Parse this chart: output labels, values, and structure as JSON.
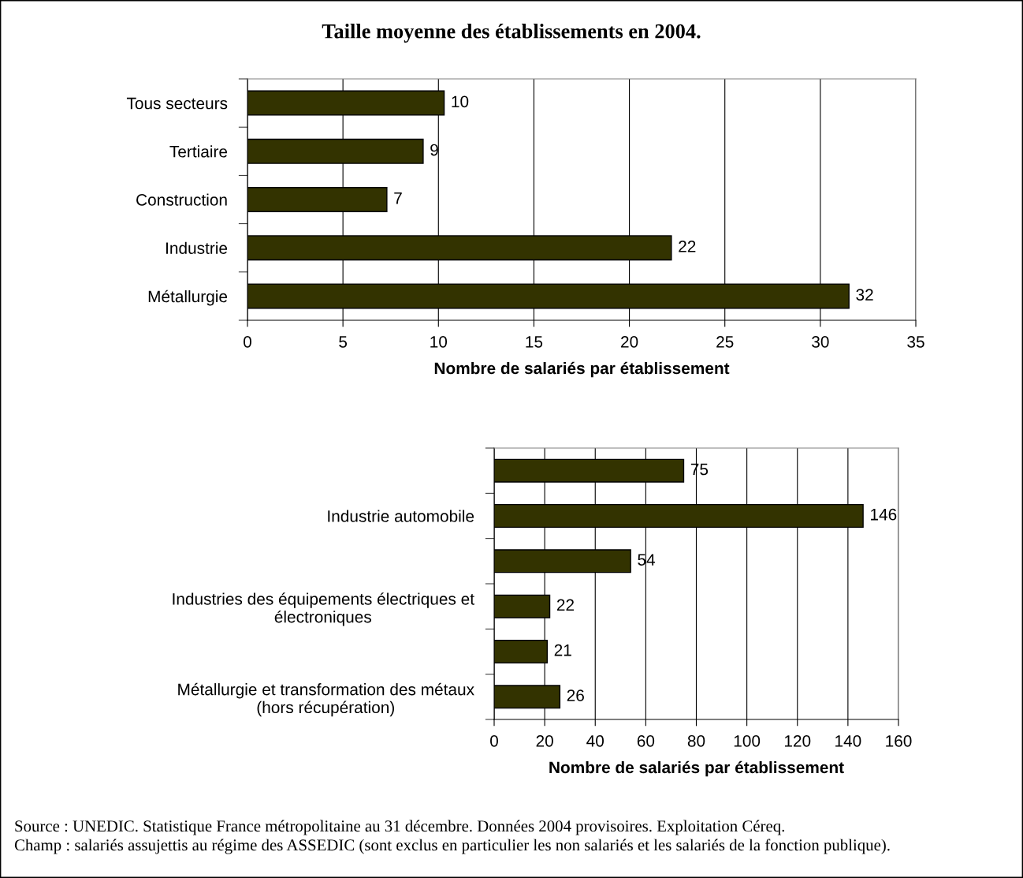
{
  "chart_data": [
    {
      "type": "bar",
      "orientation": "horizontal",
      "title": "Taille moyenne des établissements en 2004.",
      "categories": [
        "Tous secteurs",
        "Tertiaire",
        "Construction",
        "Industrie",
        "Métallurgie"
      ],
      "values": [
        10.3,
        9.2,
        7.3,
        22.2,
        31.5
      ],
      "value_labels": [
        "10",
        "9",
        "7",
        "22",
        "32"
      ],
      "color": "#333300",
      "xlim": [
        0,
        35
      ],
      "xticks": [
        0,
        5,
        10,
        15,
        20,
        25,
        30,
        35
      ],
      "xlabel": "Nombre de salariés par établissement",
      "grid": "x",
      "legend": false
    },
    {
      "type": "bar",
      "orientation": "horizontal",
      "categories": [
        null,
        "Industrie automobile",
        null,
        "Industries des équipements électriques et\nélectroniques",
        null,
        "Métallurgie et transformation des métaux\n(hors récupération)"
      ],
      "values": [
        75,
        146,
        54,
        22,
        21,
        26
      ],
      "data_labels": true,
      "color": "#333300",
      "xlim": [
        0,
        160
      ],
      "xticks": [
        0,
        20,
        40,
        60,
        80,
        100,
        120,
        140,
        160
      ],
      "xlabel": "Nombre de salariés par établissement",
      "grid": "x",
      "legend": false,
      "annotations": [
        "Source : UNEDIC. Statistique France métropolitaine au 31 décembre. Données 2004 provisoires. Exploitation Céreq.",
        "Champ : salariés assujettis au régime des ASSEDIC (sont exclus en particulier les non salariés et les salariés de la fonction publique)."
      ]
    }
  ]
}
